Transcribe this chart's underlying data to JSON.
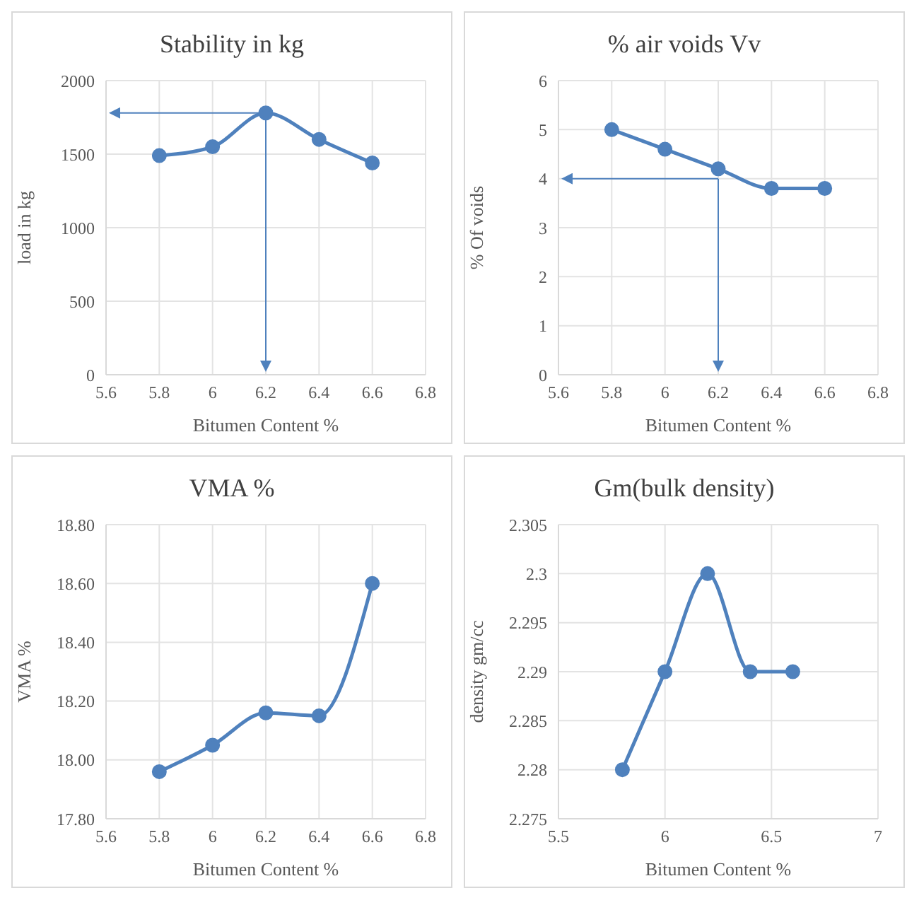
{
  "chart_data": [
    {
      "type": "line",
      "title": "Stability in kg",
      "xlabel": "Bitumen Content %",
      "ylabel": "load in kg",
      "x": [
        5.8,
        6,
        6.2,
        6.4,
        6.6
      ],
      "series": [
        {
          "color": "#4f81bd",
          "values": [
            1490,
            1550,
            1780,
            1600,
            1440
          ]
        }
      ],
      "xlim": [
        5.6,
        6.8
      ],
      "xticks": [
        5.6,
        5.8,
        6,
        6.2,
        6.4,
        6.6,
        6.8
      ],
      "ylim": [
        0,
        2000
      ],
      "yticks": [
        0,
        500,
        1000,
        1500,
        2000
      ],
      "grid": true,
      "marker": "circle",
      "ref_lines": [
        {
          "axis": "y",
          "value": 1780,
          "color": "#4f81bd"
        },
        {
          "axis": "x",
          "value": 6.2,
          "color": "#4f81bd"
        }
      ]
    },
    {
      "type": "line",
      "title": "% air voids Vv",
      "xlabel": "Bitumen Content %",
      "ylabel": "% Of voids",
      "x": [
        5.8,
        6,
        6.2,
        6.4,
        6.6
      ],
      "series": [
        {
          "color": "#4f81bd",
          "values": [
            5,
            4.6,
            4.2,
            3.8,
            3.8
          ]
        }
      ],
      "xlim": [
        5.6,
        6.8
      ],
      "xticks": [
        5.6,
        5.8,
        6,
        6.2,
        6.4,
        6.6,
        6.8
      ],
      "ylim": [
        0,
        6
      ],
      "yticks": [
        0,
        1,
        2,
        3,
        4,
        5,
        6
      ],
      "grid": true,
      "marker": "circle",
      "ref_lines": [
        {
          "axis": "y",
          "value": 4,
          "color": "#4f81bd"
        },
        {
          "axis": "x",
          "value": 6.2,
          "color": "#4f81bd"
        }
      ]
    },
    {
      "type": "line",
      "title": "VMA %",
      "xlabel": "Bitumen Content %",
      "ylabel": "VMA %",
      "x": [
        5.8,
        6,
        6.2,
        6.4,
        6.6
      ],
      "series": [
        {
          "color": "#4f81bd",
          "values": [
            17.96,
            18.05,
            18.16,
            18.15,
            18.6
          ]
        }
      ],
      "xlim": [
        5.6,
        6.8
      ],
      "xticks": [
        5.6,
        5.8,
        6,
        6.2,
        6.4,
        6.6,
        6.8
      ],
      "ylim": [
        17.8,
        18.8
      ],
      "yticks": [
        {
          "value": 17.8,
          "label": "17.80"
        },
        {
          "value": 18,
          "label": "18.00"
        },
        {
          "value": 18.2,
          "label": "18.20"
        },
        {
          "value": 18.4,
          "label": "18.40"
        },
        {
          "value": 18.6,
          "label": "18.60"
        },
        {
          "value": 18.8,
          "label": "18.80"
        }
      ],
      "grid": true,
      "marker": "circle"
    },
    {
      "type": "line",
      "title": "Gm(bulk density)",
      "xlabel": "Bitumen Content %",
      "ylabel": "density gm/cc",
      "x": [
        5.8,
        6,
        6.2,
        6.4,
        6.6
      ],
      "series": [
        {
          "color": "#4f81bd",
          "values": [
            2.28,
            2.29,
            2.3,
            2.29,
            2.29
          ]
        }
      ],
      "xlim": [
        5.5,
        7
      ],
      "xticks": [
        5.5,
        6,
        6.5,
        7
      ],
      "ylim": [
        2.275,
        2.305
      ],
      "yticks": [
        2.275,
        2.28,
        2.285,
        2.29,
        2.295,
        2.3,
        2.305
      ],
      "grid": true,
      "marker": "circle"
    }
  ]
}
